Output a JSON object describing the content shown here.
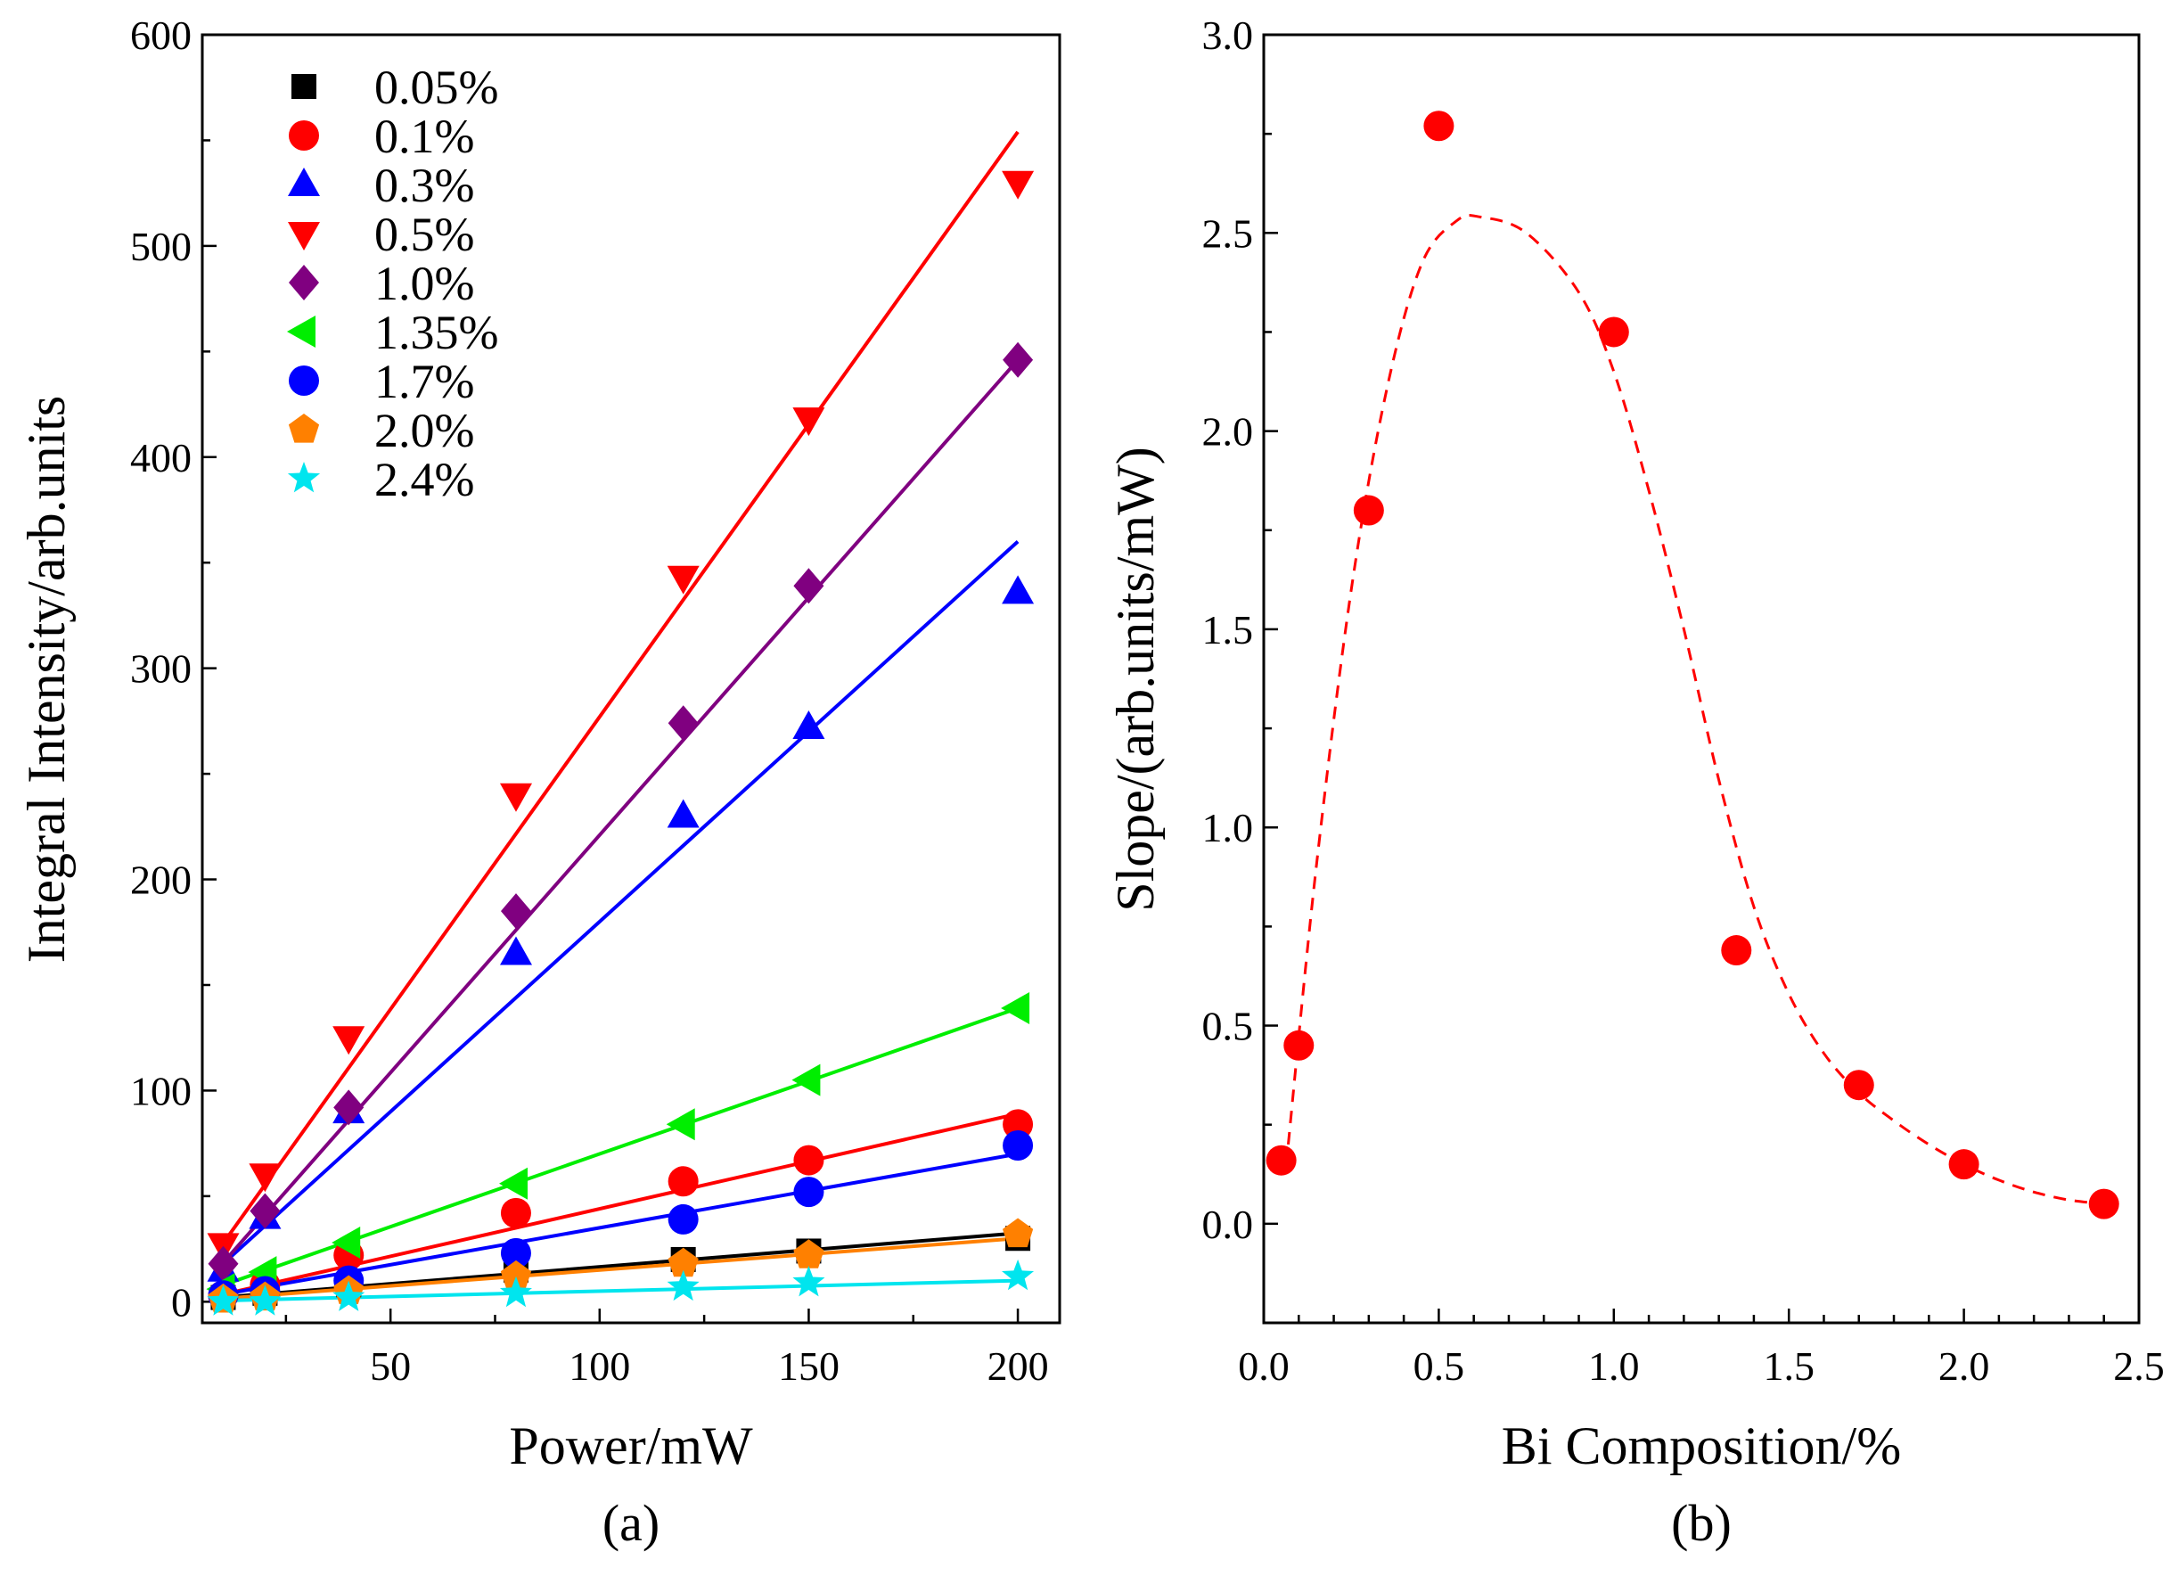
{
  "chart_data": [
    {
      "type": "scatter",
      "caption": "(a)",
      "xlabel": "Power/mW",
      "ylabel": "Integral Intensity/arb.units",
      "xlim": [
        5,
        210
      ],
      "ylim": [
        -10,
        600
      ],
      "xticks": [
        50,
        100,
        150,
        200
      ],
      "yticks": [
        0,
        100,
        200,
        300,
        400,
        500,
        600
      ],
      "legend_position": "top-left",
      "x": [
        10,
        20,
        40,
        80,
        120,
        150,
        200
      ],
      "series": [
        {
          "name": "0.05%",
          "marker": "square",
          "color": "#000000",
          "values": [
            2,
            4,
            8,
            15,
            20,
            24,
            30
          ],
          "fit": [
            0.16,
            0.5
          ]
        },
        {
          "name": "0.1%",
          "marker": "circle",
          "color": "#ff0000",
          "values": [
            3,
            8,
            22,
            42,
            57,
            67,
            84
          ],
          "fit": [
            0.45,
            -1
          ]
        },
        {
          "name": "0.3%",
          "marker": "triangle-up",
          "color": "#0000ff",
          "values": [
            15,
            40,
            90,
            165,
            230,
            272,
            336
          ],
          "fit": [
            1.8,
            0
          ]
        },
        {
          "name": "0.5%",
          "marker": "triangle-down",
          "color": "#ff0000",
          "values": [
            27,
            60,
            125,
            240,
            343,
            418,
            530
          ],
          "fit": [
            2.77,
            0
          ]
        },
        {
          "name": "1.0%",
          "marker": "diamond",
          "color": "#800080",
          "values": [
            18,
            43,
            92,
            185,
            274,
            339,
            446
          ],
          "fit": [
            2.25,
            -4
          ]
        },
        {
          "name": "1.35%",
          "marker": "triangle-left",
          "color": "#00ee00",
          "values": [
            6,
            14,
            28,
            56,
            84,
            105,
            139
          ],
          "fit": [
            0.69,
            1
          ]
        },
        {
          "name": "1.7%",
          "marker": "circle",
          "color": "#0000ff",
          "values": [
            3,
            5,
            10,
            23,
            39,
            52,
            74
          ],
          "fit": [
            0.35,
            0
          ]
        },
        {
          "name": "2.0%",
          "marker": "pentagon",
          "color": "#ff8000",
          "values": [
            1,
            2,
            5,
            12,
            18,
            22,
            32
          ],
          "fit": [
            0.15,
            0
          ]
        },
        {
          "name": "2.4%",
          "marker": "star",
          "color": "#00e5ee",
          "values": [
            0,
            0,
            2,
            4,
            7,
            9,
            12
          ],
          "fit": [
            0.05,
            0
          ]
        }
      ]
    },
    {
      "type": "scatter",
      "caption": "(b)",
      "xlabel": "Bi Composition/%",
      "ylabel": "Slope/(arb.units/mW)",
      "xlim": [
        0,
        2.5
      ],
      "ylim": [
        -0.25,
        3.0
      ],
      "xticks": [
        0.0,
        0.5,
        1.0,
        1.5,
        2.0,
        2.5
      ],
      "yticks": [
        0.0,
        0.5,
        1.0,
        1.5,
        2.0,
        2.5,
        3.0
      ],
      "marker_color": "#ff0000",
      "points": [
        {
          "x": 0.05,
          "y": 0.16
        },
        {
          "x": 0.1,
          "y": 0.45
        },
        {
          "x": 0.3,
          "y": 1.8
        },
        {
          "x": 0.5,
          "y": 2.77
        },
        {
          "x": 1.0,
          "y": 2.25
        },
        {
          "x": 1.35,
          "y": 0.69
        },
        {
          "x": 1.7,
          "y": 0.35
        },
        {
          "x": 2.0,
          "y": 0.15
        },
        {
          "x": 2.4,
          "y": 0.05
        }
      ],
      "trend_line": "dashed red fit",
      "trend_points": [
        {
          "x": 0.07,
          "y": 0.2
        },
        {
          "x": 0.15,
          "y": 0.9
        },
        {
          "x": 0.25,
          "y": 1.6
        },
        {
          "x": 0.35,
          "y": 2.1
        },
        {
          "x": 0.45,
          "y": 2.42
        },
        {
          "x": 0.55,
          "y": 2.53
        },
        {
          "x": 0.62,
          "y": 2.54
        },
        {
          "x": 0.75,
          "y": 2.5
        },
        {
          "x": 0.9,
          "y": 2.35
        },
        {
          "x": 1.0,
          "y": 2.15
        },
        {
          "x": 1.1,
          "y": 1.85
        },
        {
          "x": 1.2,
          "y": 1.5
        },
        {
          "x": 1.3,
          "y": 1.12
        },
        {
          "x": 1.4,
          "y": 0.8
        },
        {
          "x": 1.5,
          "y": 0.58
        },
        {
          "x": 1.6,
          "y": 0.43
        },
        {
          "x": 1.7,
          "y": 0.33
        },
        {
          "x": 1.8,
          "y": 0.26
        },
        {
          "x": 1.9,
          "y": 0.2
        },
        {
          "x": 2.0,
          "y": 0.15
        },
        {
          "x": 2.1,
          "y": 0.11
        },
        {
          "x": 2.2,
          "y": 0.08
        },
        {
          "x": 2.3,
          "y": 0.06
        },
        {
          "x": 2.4,
          "y": 0.05
        }
      ]
    }
  ]
}
